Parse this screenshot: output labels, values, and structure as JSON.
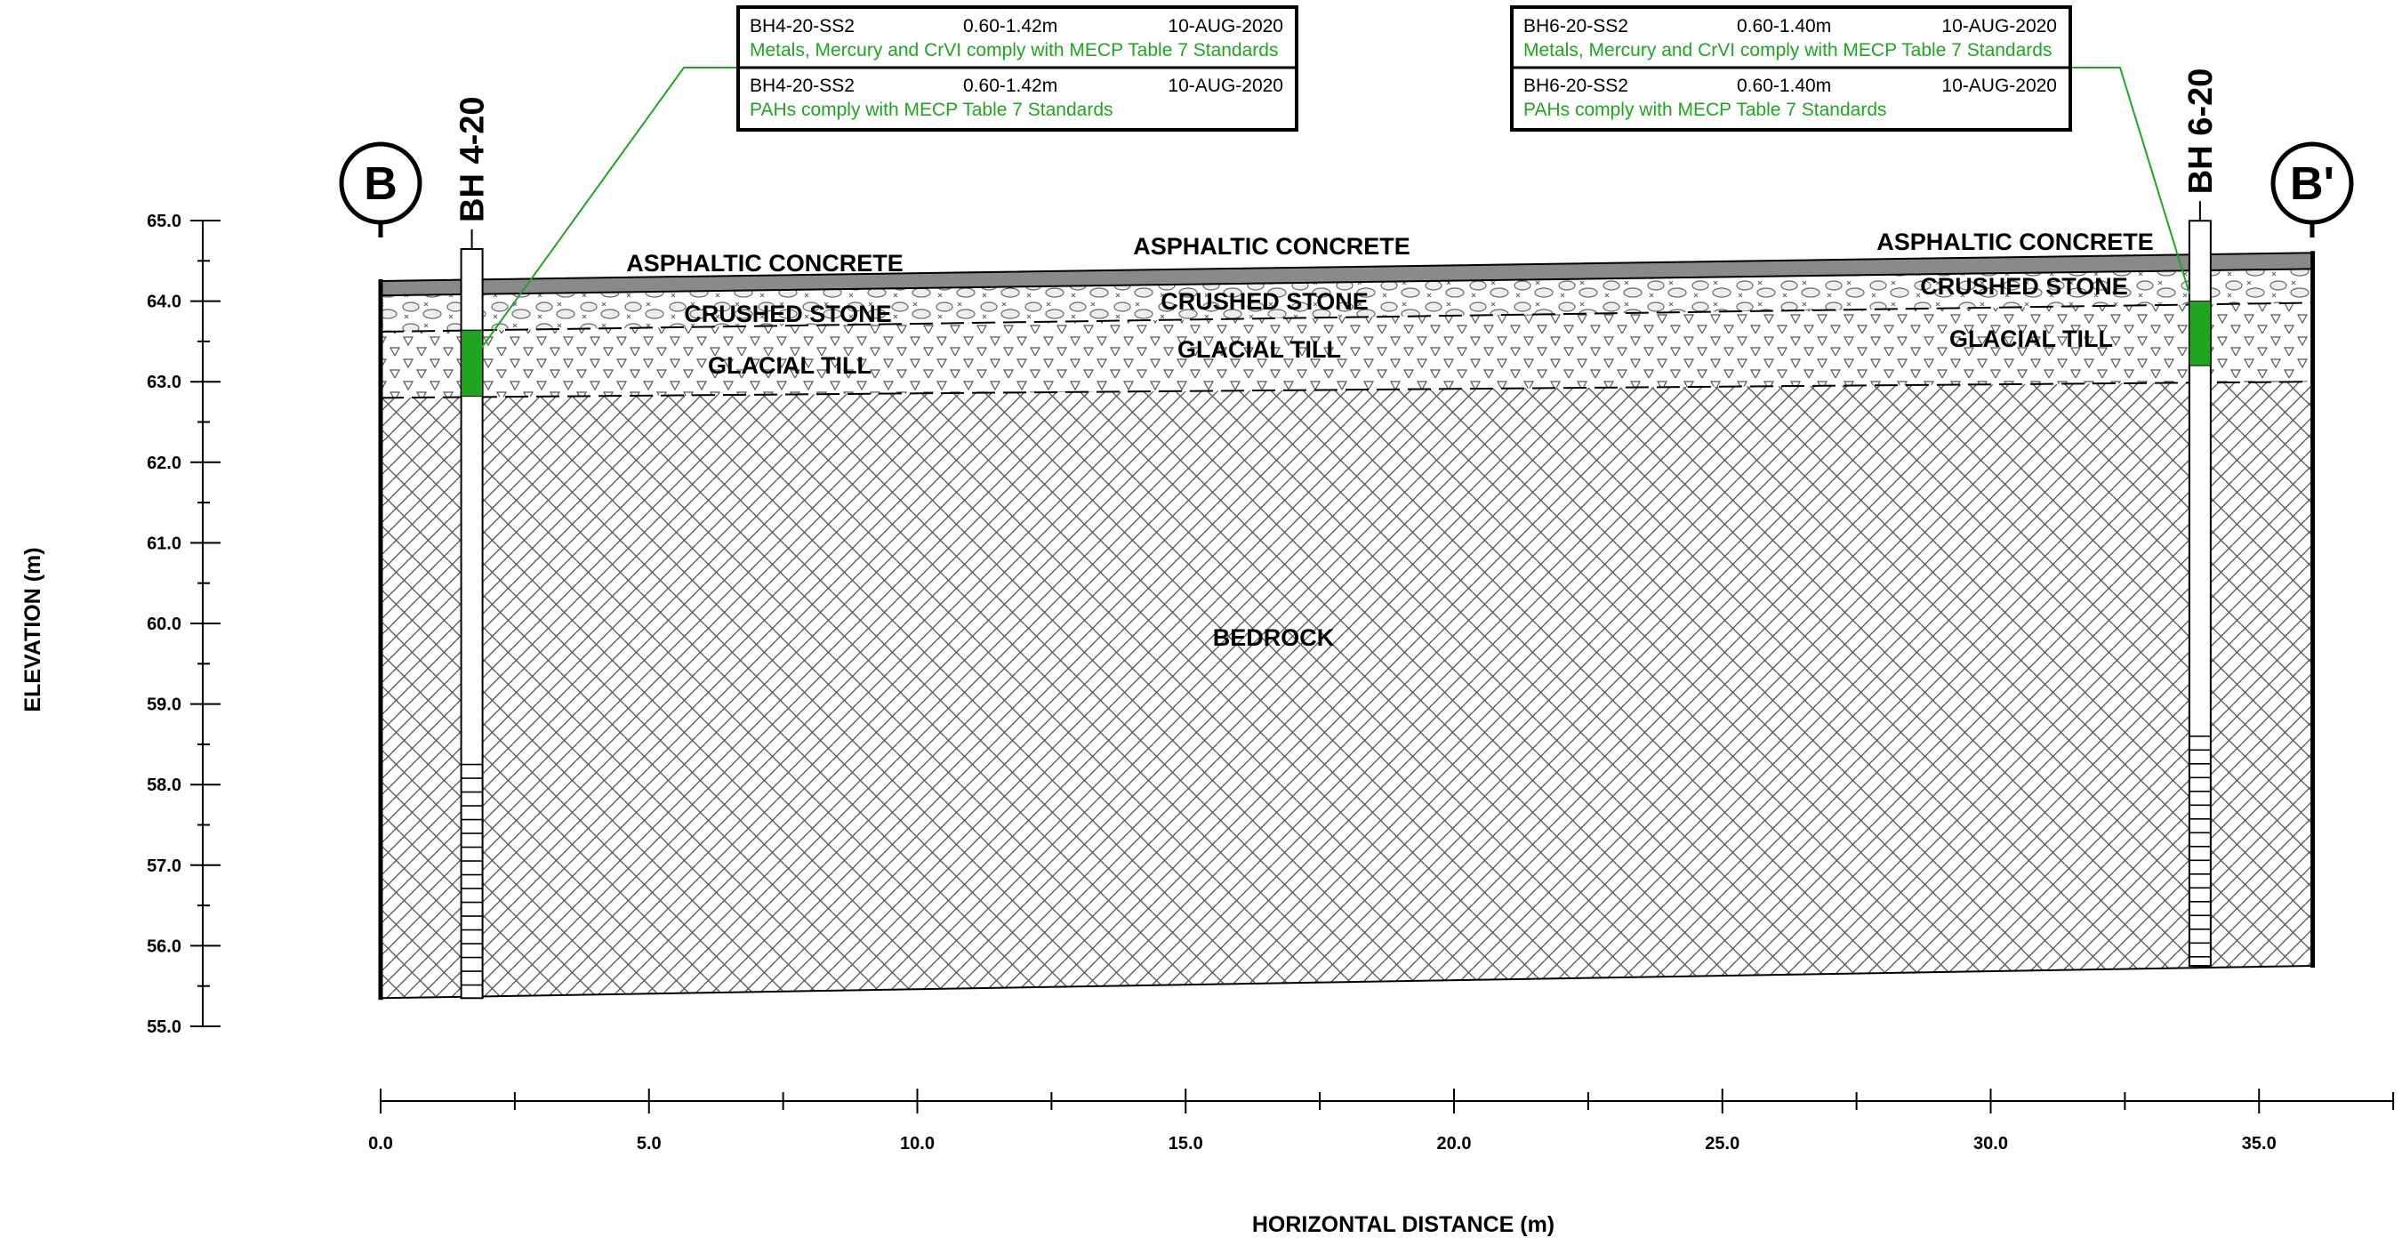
{
  "chart_data": {
    "type": "cross-section",
    "xlabel": "HORIZONTAL DISTANCE (m)",
    "ylabel": "ELEVATION (m)",
    "xlim": [
      0,
      37.5
    ],
    "ylim": [
      55,
      65
    ],
    "x_ticks": [
      0,
      2.5,
      5,
      7.5,
      10,
      12.5,
      15,
      17.5,
      20,
      22.5,
      25,
      27.5,
      30,
      32.5,
      35,
      37.5
    ],
    "x_tick_labels": [
      "0.0",
      "5.0",
      "10.0",
      "15.0",
      "20.0",
      "25.0",
      "30.0",
      "35.0"
    ],
    "x_tick_label_values": [
      0,
      5,
      10,
      15,
      20,
      25,
      30,
      35
    ],
    "y_tick_labels": [
      "65.0",
      "64.0",
      "63.0",
      "62.0",
      "61.0",
      "60.0",
      "59.0",
      "58.0",
      "57.0",
      "56.0",
      "55.0"
    ],
    "y_tick_label_values": [
      65,
      64,
      63,
      62,
      61,
      60,
      59,
      58,
      57,
      56,
      55
    ],
    "section": {
      "start_label": "B",
      "end_label": "B'",
      "start_x": 0,
      "end_x": 36,
      "bottom_elevation_start": 55.35,
      "bottom_elevation_end": 55.75
    },
    "layers": [
      {
        "name": "asphaltic concrete",
        "top": [
          64.25,
          64.6
        ],
        "bottom": [
          64.07,
          64.4
        ],
        "labels": [
          "ASPHALTIC CONCRETE",
          "ASPHALTIC CONCRETE",
          "ASPHALTIC CONCRETE"
        ]
      },
      {
        "name": "crushed stone",
        "top": [
          64.07,
          64.4
        ],
        "bottom": [
          63.62,
          63.98
        ],
        "labels": [
          "CRUSHED STONE",
          "CRUSHED STONE",
          "CRUSHED STONE"
        ]
      },
      {
        "name": "glacial till",
        "top": [
          63.62,
          63.98
        ],
        "bottom": [
          62.8,
          63.0
        ],
        "labels": [
          "GLACIAL TILL",
          "GLACIAL TILL",
          "GLACIAL TILL"
        ]
      },
      {
        "name": "bedrock",
        "top": [
          62.8,
          63.0
        ],
        "bottom": [
          55.35,
          55.75
        ],
        "labels": [
          "BEDROCK"
        ]
      }
    ],
    "boreholes": [
      {
        "id": "BH 4-20",
        "x": 1.7,
        "top": 64.25,
        "bottom": 55.35,
        "sample_top": 63.64,
        "sample_bottom": 62.82,
        "screen_top": 58.25,
        "screen_bottom": 55.35,
        "results": [
          {
            "sample": "BH4-20-SS2",
            "depth": "0.60-1.42m",
            "date": "10-AUG-2020",
            "result": "Metals, Mercury and CrVI comply with MECP Table 7 Standards"
          },
          {
            "sample": "BH4-20-SS2",
            "depth": "0.60-1.42m",
            "date": "10-AUG-2020",
            "result": "PAHs comply with MECP Table 7 Standards"
          }
        ]
      },
      {
        "id": "BH 6-20",
        "x": 33.9,
        "top": 64.6,
        "bottom": 55.75,
        "sample_top": 64.0,
        "sample_bottom": 63.2,
        "screen_top": 58.6,
        "screen_bottom": 55.75,
        "results": [
          {
            "sample": "BH6-20-SS2",
            "depth": "0.60-1.40m",
            "date": "10-AUG-2020",
            "result": "Metals, Mercury and CrVI comply with MECP Table 7 Standards"
          },
          {
            "sample": "BH6-20-SS2",
            "depth": "0.60-1.40m",
            "date": "10-AUG-2020",
            "result": "PAHs comply with MECP Table 7 Standards"
          }
        ]
      }
    ],
    "colors": {
      "asphalt": "#8a8a8a",
      "sample": "#1fa51f",
      "result_text": "#1fa51f",
      "lines": "#000000"
    }
  }
}
